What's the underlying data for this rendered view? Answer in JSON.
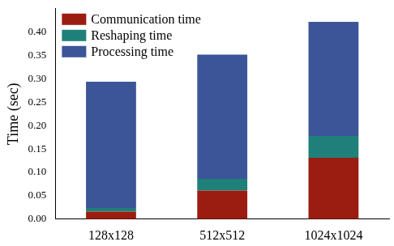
{
  "chart_data": {
    "type": "bar",
    "stacked": true,
    "grid": false,
    "legend": "upper left",
    "y_label": "Time (sec)",
    "categories": [
      "128x128",
      "512x512",
      "1024x1024"
    ],
    "series": [
      {
        "name": "Communication time",
        "color": "#9b1c10",
        "values": [
          0.016,
          0.061,
          0.131
        ]
      },
      {
        "name": "Reshaping time",
        "color": "#1e8079",
        "values": [
          0.008,
          0.025,
          0.047
        ]
      },
      {
        "name": "Processing time",
        "color": "#3b5598",
        "values": [
          0.27,
          0.266,
          0.244
        ]
      }
    ],
    "ylim": [
      0,
      0.45
    ],
    "yticks": [
      {
        "value": 0,
        "label": "0.00"
      },
      {
        "value": 0.05,
        "label": "0.05"
      },
      {
        "value": 0.1,
        "label": "0.10"
      },
      {
        "value": 0.15,
        "label": "0.15"
      },
      {
        "value": 0.2,
        "label": "0.20"
      },
      {
        "value": 0.25,
        "label": "0.25"
      },
      {
        "value": 0.3,
        "label": "0.30"
      },
      {
        "value": 0.35,
        "label": "0.35"
      },
      {
        "value": 0.4,
        "label": "0.40"
      }
    ]
  }
}
